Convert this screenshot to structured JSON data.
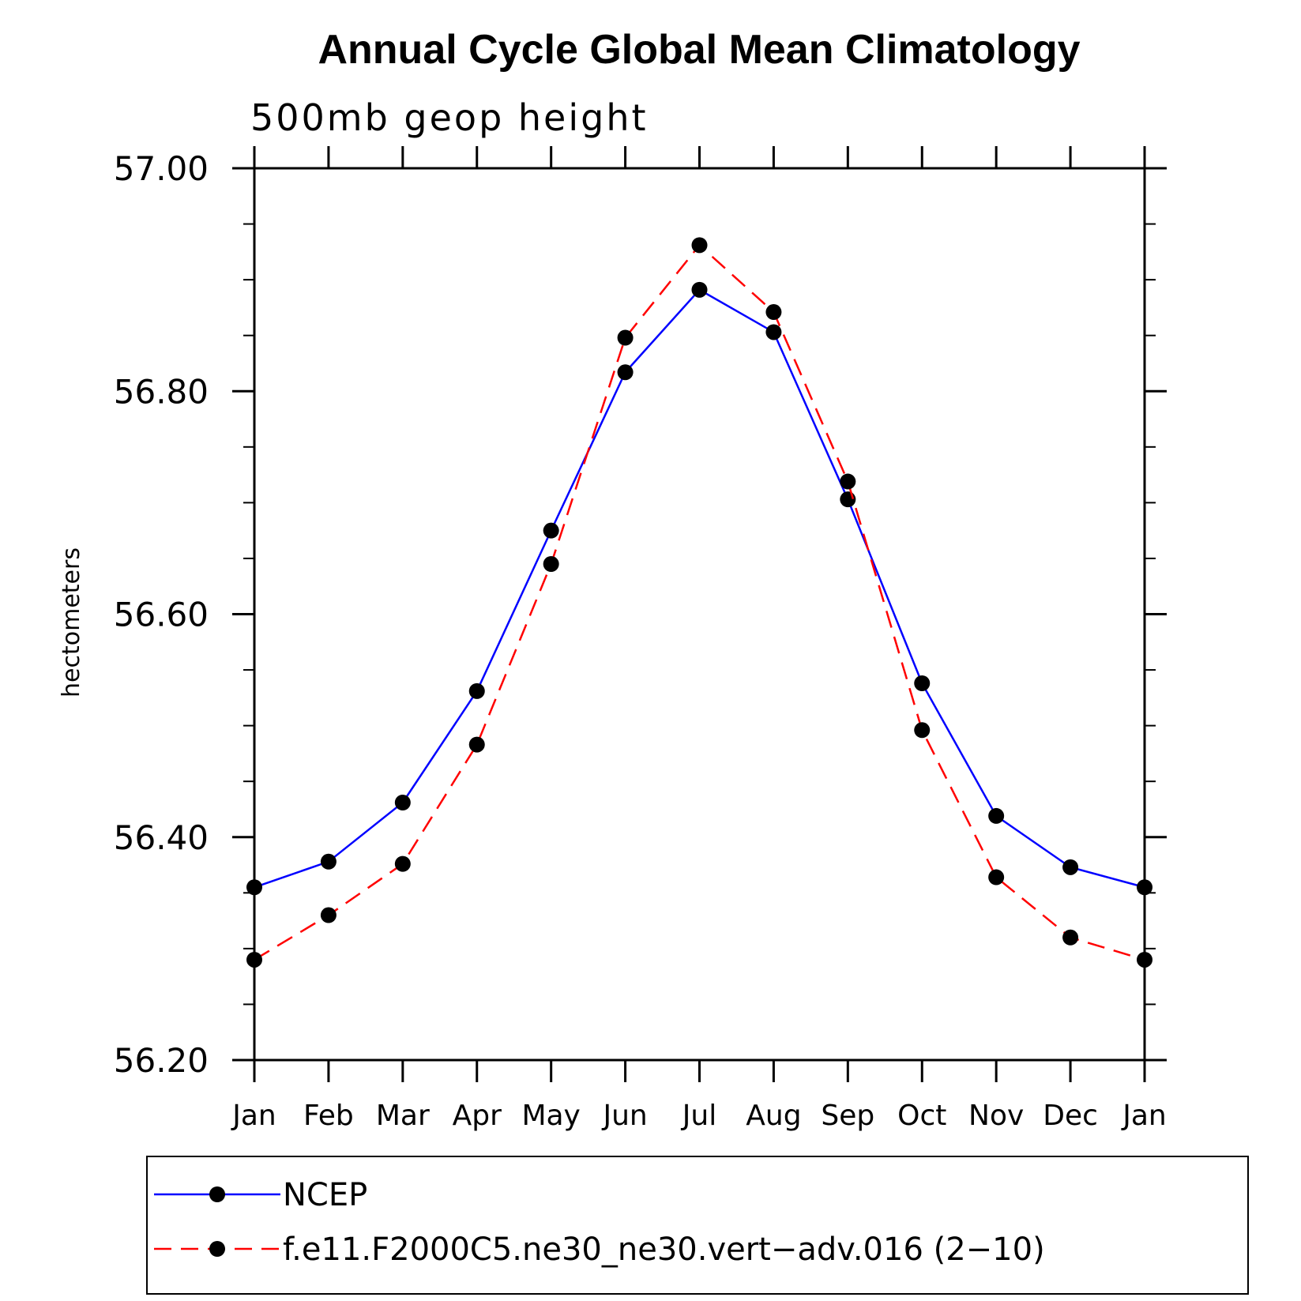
{
  "chart_data": {
    "type": "line",
    "title": "Annual Cycle Global Mean Climatology",
    "subtitle": "500mb geop height",
    "ylabel": "hectometers",
    "xlabel": "",
    "ylim": [
      56.2,
      57.0
    ],
    "yticks": [
      56.2,
      56.4,
      56.6,
      56.8,
      57.0
    ],
    "ytick_labels": [
      "56.20",
      "56.40",
      "56.60",
      "56.80",
      "57.00"
    ],
    "categories": [
      "Jan",
      "Feb",
      "Mar",
      "Apr",
      "May",
      "Jun",
      "Jul",
      "Aug",
      "Sep",
      "Oct",
      "Nov",
      "Dec",
      "Jan"
    ],
    "series": [
      {
        "name": "NCEP",
        "color": "#0000ff",
        "dash": "solid",
        "marker": "filled-circle",
        "values": [
          56.355,
          56.378,
          56.431,
          56.531,
          56.675,
          56.817,
          56.891,
          56.853,
          56.703,
          56.538,
          56.419,
          56.373,
          56.355
        ]
      },
      {
        "name": "f.e11.F2000C5.ne30_ne30.vert−adv.016 (2−10)",
        "color": "#ff0000",
        "dash": "dashed",
        "marker": "filled-circle",
        "values": [
          56.29,
          56.33,
          56.376,
          56.483,
          56.645,
          56.848,
          56.931,
          56.871,
          56.719,
          56.496,
          56.364,
          56.31,
          56.29
        ]
      }
    ],
    "grid": false,
    "legend_position": "bottom"
  }
}
